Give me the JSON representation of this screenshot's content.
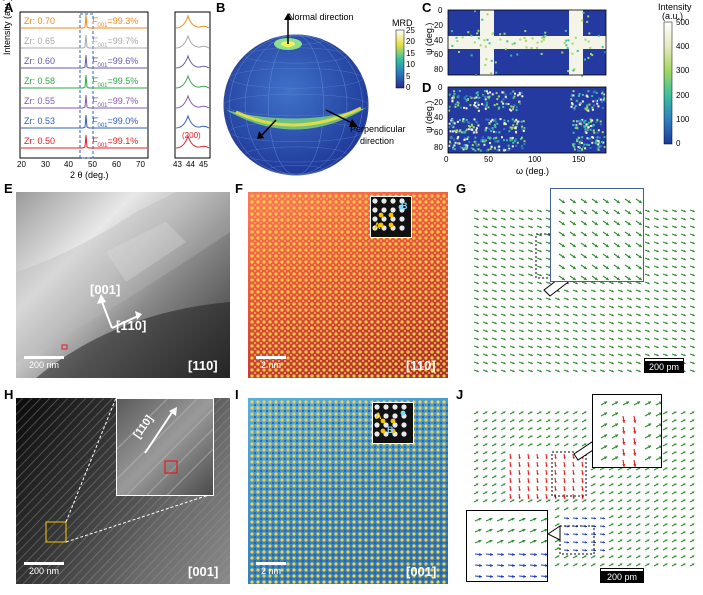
{
  "panels": {
    "A": "A",
    "B": "B",
    "C": "C",
    "D": "D",
    "E": "E",
    "F": "F",
    "G": "G",
    "H": "H",
    "I": "I",
    "J": "J"
  },
  "panelA": {
    "ylabel": "Intensity (a.u.)",
    "xlabel": "2 θ (deg.)",
    "xticks_main": [
      "20",
      "30",
      "40",
      "50",
      "60",
      "70"
    ],
    "xticks_zoom": [
      "43",
      "44",
      "45"
    ],
    "peak_label": "(200)",
    "rows": [
      {
        "zr": "Zr: 0.70",
        "f": "F",
        "sub": "001",
        "val": "=99.3%",
        "color": "#f28a1b"
      },
      {
        "zr": "Zr: 0.65",
        "f": "F",
        "sub": "001",
        "val": "=99.7%",
        "color": "#a8a8a8"
      },
      {
        "zr": "Zr: 0.60",
        "f": "F",
        "sub": "001",
        "val": "=99.6%",
        "color": "#6a5aa8"
      },
      {
        "zr": "Zr: 0.58",
        "f": "F",
        "sub": "001",
        "val": "=99.5%",
        "color": "#2fa84a"
      },
      {
        "zr": "Zr: 0.55",
        "f": "F",
        "sub": "001",
        "val": "=99.7%",
        "color": "#8a58b0"
      },
      {
        "zr": "Zr: 0.53",
        "f": "F",
        "sub": "001",
        "val": "=99.0%",
        "color": "#2f62b8"
      },
      {
        "zr": "Zr: 0.50",
        "f": "F",
        "sub": "001",
        "val": "=99.1%",
        "color": "#e32026"
      }
    ]
  },
  "panelB": {
    "normal": "Normal direction",
    "perp1": "Perpendicular",
    "perp2": "direction",
    "mrd": "MRD",
    "ticks": [
      "25",
      "20",
      "15",
      "10",
      "5",
      "0"
    ]
  },
  "panelCD": {
    "ylabel": "ψ (deg.)",
    "xlabel": "ω (deg.)",
    "yticks": [
      "0",
      "20",
      "40",
      "60",
      "80"
    ],
    "xticks": [
      "0",
      "50",
      "100",
      "150"
    ],
    "cb_title1": "Intensity",
    "cb_title2": "(a.u.)",
    "cb_ticks": [
      "500",
      "400",
      "300",
      "200",
      "100",
      "0"
    ]
  },
  "panelE": {
    "d1": "[001]",
    "d2": "[1̄10]",
    "zone": "[110]",
    "scale": "200 nm"
  },
  "panelF": {
    "zone": "[110]",
    "scale": "2 nm",
    "a": "A",
    "b": "B"
  },
  "panelG": {
    "scale": "200 pm"
  },
  "panelH": {
    "inset_dir": "[110]",
    "zone": "[001]",
    "scale": "200 nm"
  },
  "panelI": {
    "zone": "[001]",
    "scale": "2 nm",
    "a": "A",
    "b": "B"
  },
  "panelJ": {
    "scale": "200 pm"
  },
  "colors": {
    "xrd_frame": "#000",
    "field_green": "#2e8b2e",
    "field_red": "#e02020",
    "field_blue": "#2040c0",
    "haadf_gold": "#f5c400",
    "lattice_red": "#c83030",
    "lattice_blue": "#2f7fb8"
  }
}
